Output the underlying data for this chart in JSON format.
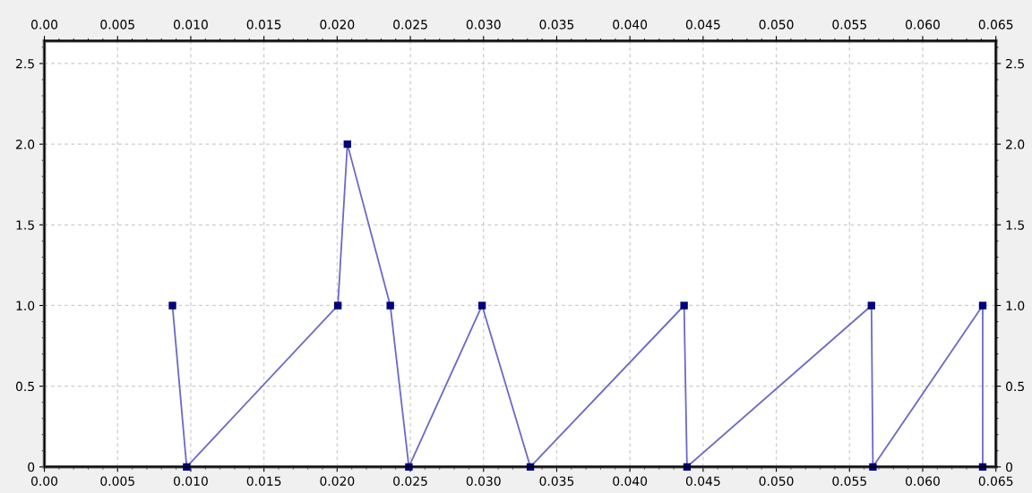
{
  "chart_data": {
    "type": "line",
    "x": [
      0.00875,
      0.00972,
      0.02005,
      0.0207,
      0.02363,
      0.0249,
      0.0299,
      0.0332,
      0.0437,
      0.0439,
      0.0565,
      0.0566,
      0.0641,
      0.0641
    ],
    "series": [
      {
        "color": "#6a6ac8",
        "values": [
          1,
          0,
          1,
          2,
          1,
          0,
          1,
          0,
          1,
          0,
          1,
          0,
          1,
          0
        ]
      }
    ],
    "marker": "square",
    "line_style": "solid",
    "grid": true,
    "legend": false,
    "xlim": [
      0,
      0.065
    ],
    "ylim": [
      0,
      2.64
    ],
    "x2lim": [
      0,
      0.065
    ],
    "y2lim": [
      0,
      2.64
    ],
    "xticks": [
      {
        "value": 0,
        "label": "0.00"
      },
      {
        "value": 0.005,
        "label": "0.005"
      },
      {
        "value": 0.01,
        "label": "0.010"
      },
      {
        "value": 0.015,
        "label": "0.015"
      },
      {
        "value": 0.02,
        "label": "0.020"
      },
      {
        "value": 0.025,
        "label": "0.025"
      },
      {
        "value": 0.03,
        "label": "0.030"
      },
      {
        "value": 0.035,
        "label": "0.035"
      },
      {
        "value": 0.04,
        "label": "0.040"
      },
      {
        "value": 0.045,
        "label": "0.045"
      },
      {
        "value": 0.05,
        "label": "0.050"
      },
      {
        "value": 0.055,
        "label": "0.055"
      },
      {
        "value": 0.06,
        "label": "0.060"
      },
      {
        "value": 0.065,
        "label": "0.065"
      }
    ],
    "x2ticks": [
      {
        "value": 0,
        "label": "0.00"
      },
      {
        "value": 0.005,
        "label": "0.005"
      },
      {
        "value": 0.01,
        "label": "0.010"
      },
      {
        "value": 0.015,
        "label": "0.015"
      },
      {
        "value": 0.02,
        "label": "0.020"
      },
      {
        "value": 0.025,
        "label": "0.025"
      },
      {
        "value": 0.03,
        "label": "0.030"
      },
      {
        "value": 0.035,
        "label": "0.035"
      },
      {
        "value": 0.04,
        "label": "0.040"
      },
      {
        "value": 0.045,
        "label": "0.045"
      },
      {
        "value": 0.05,
        "label": "0.050"
      },
      {
        "value": 0.055,
        "label": "0.055"
      },
      {
        "value": 0.06,
        "label": "0.060"
      },
      {
        "value": 0.065,
        "label": "0.065"
      }
    ],
    "yticks": [
      0,
      0.5,
      {
        "value": 1,
        "label": "1.0"
      },
      1.5,
      {
        "value": 2,
        "label": "2.0"
      },
      2.5
    ],
    "y2ticks": [
      0,
      0.5,
      {
        "value": 1,
        "label": "1.0"
      },
      1.5,
      {
        "value": 2,
        "label": "2.0"
      },
      2.5
    ]
  }
}
